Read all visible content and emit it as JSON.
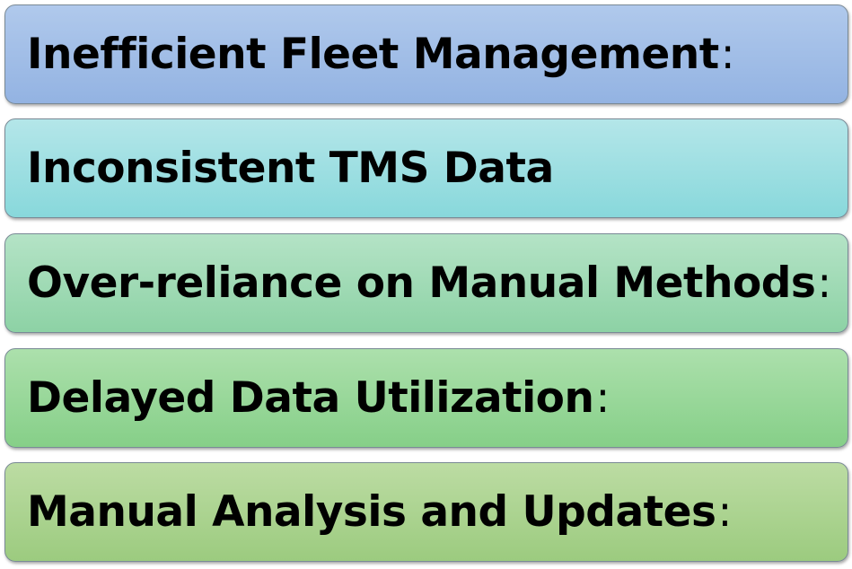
{
  "items": [
    {
      "label": "Inefficient Fleet Management",
      "suffix": ":"
    },
    {
      "label": "Inconsistent TMS Data",
      "suffix": ""
    },
    {
      "label": "Over-reliance on Manual Methods",
      "suffix": ":"
    },
    {
      "label": "Delayed Data Utilization",
      "suffix": ":"
    },
    {
      "label": "Manual Analysis and Updates",
      "suffix": ":"
    }
  ],
  "colors": {
    "box1": "#9fbde6",
    "box2": "#9cdfe1",
    "box3": "#a0dab5",
    "box4": "#98d79a",
    "box5": "#acd391",
    "border": "#7a8a96",
    "text": "#000000"
  }
}
